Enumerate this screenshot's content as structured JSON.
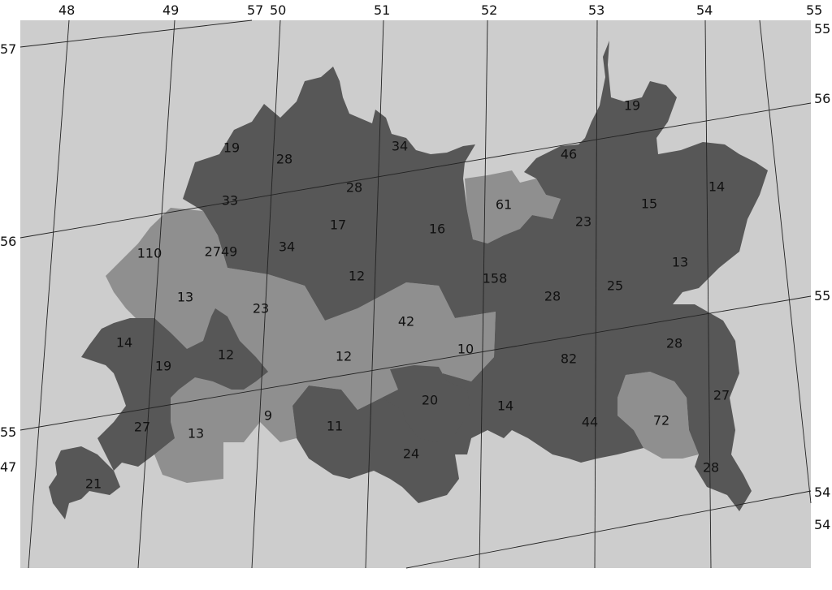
{
  "colors": {
    "page_background": "#ffffff",
    "map_background": "#cdcdcd",
    "region_dark": "#575757",
    "region_light": "#8f8f8f",
    "grid_lines": "#222222",
    "label_text": "#111111"
  },
  "graticule": {
    "top_labels": [
      "48",
      "49",
      "57",
      "50",
      "51",
      "52",
      "53",
      "54",
      "55"
    ],
    "left_labels": [
      "57",
      "56",
      "55",
      "47"
    ],
    "right_labels": [
      "55",
      "56",
      "55",
      "54",
      "54"
    ]
  },
  "region_values": [
    "19",
    "34",
    "46",
    "19",
    "28",
    "28",
    "33",
    "14",
    "15",
    "61",
    "23",
    "17",
    "16",
    "110",
    "2749",
    "34",
    "13",
    "12",
    "158",
    "25",
    "13",
    "28",
    "23",
    "42",
    "14",
    "10",
    "28",
    "12",
    "82",
    "19",
    "12",
    "27",
    "20",
    "14",
    "72",
    "44",
    "11",
    "27",
    "9",
    "13",
    "24",
    "28",
    "21"
  ]
}
